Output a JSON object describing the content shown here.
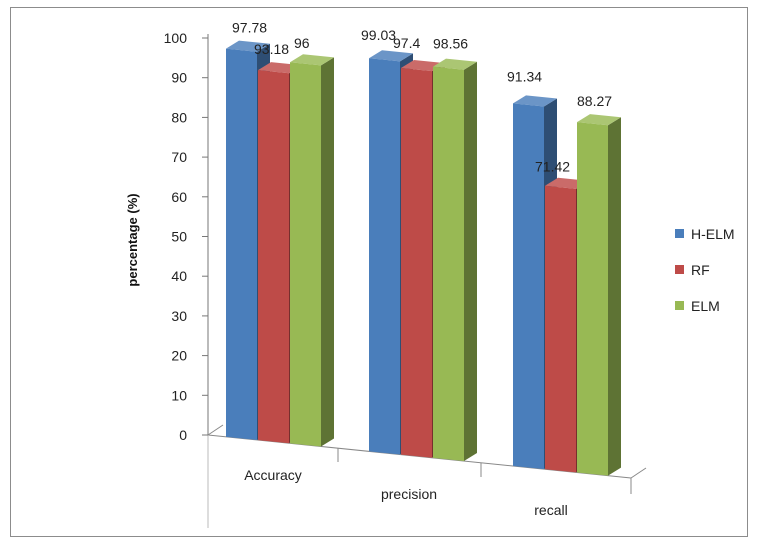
{
  "chart_data": {
    "type": "bar",
    "title": "",
    "xlabel": "",
    "ylabel": "percentage (%)",
    "ylim": [
      0,
      100
    ],
    "yticks": [
      0,
      10,
      20,
      30,
      40,
      50,
      60,
      70,
      80,
      90,
      100
    ],
    "categories": [
      "Accuracy",
      "precision",
      "recall"
    ],
    "series": [
      {
        "name": "H-ELM",
        "values": [
          97.78,
          99.03,
          91.34
        ],
        "labels": [
          "97.78",
          "99.03",
          "91.34"
        ],
        "color": "#4a7ebb"
      },
      {
        "name": "RF",
        "values": [
          93.18,
          97.4,
          71.42
        ],
        "labels": [
          "93.18",
          "97.4",
          "71.42"
        ],
        "color": "#be4b48"
      },
      {
        "name": "ELM",
        "values": [
          96,
          98.56,
          88.27
        ],
        "labels": [
          "96",
          "98.56",
          "88.27"
        ],
        "color": "#98b954"
      }
    ],
    "legend_position": "right",
    "grid": false,
    "style": "3d-clustered-column"
  }
}
